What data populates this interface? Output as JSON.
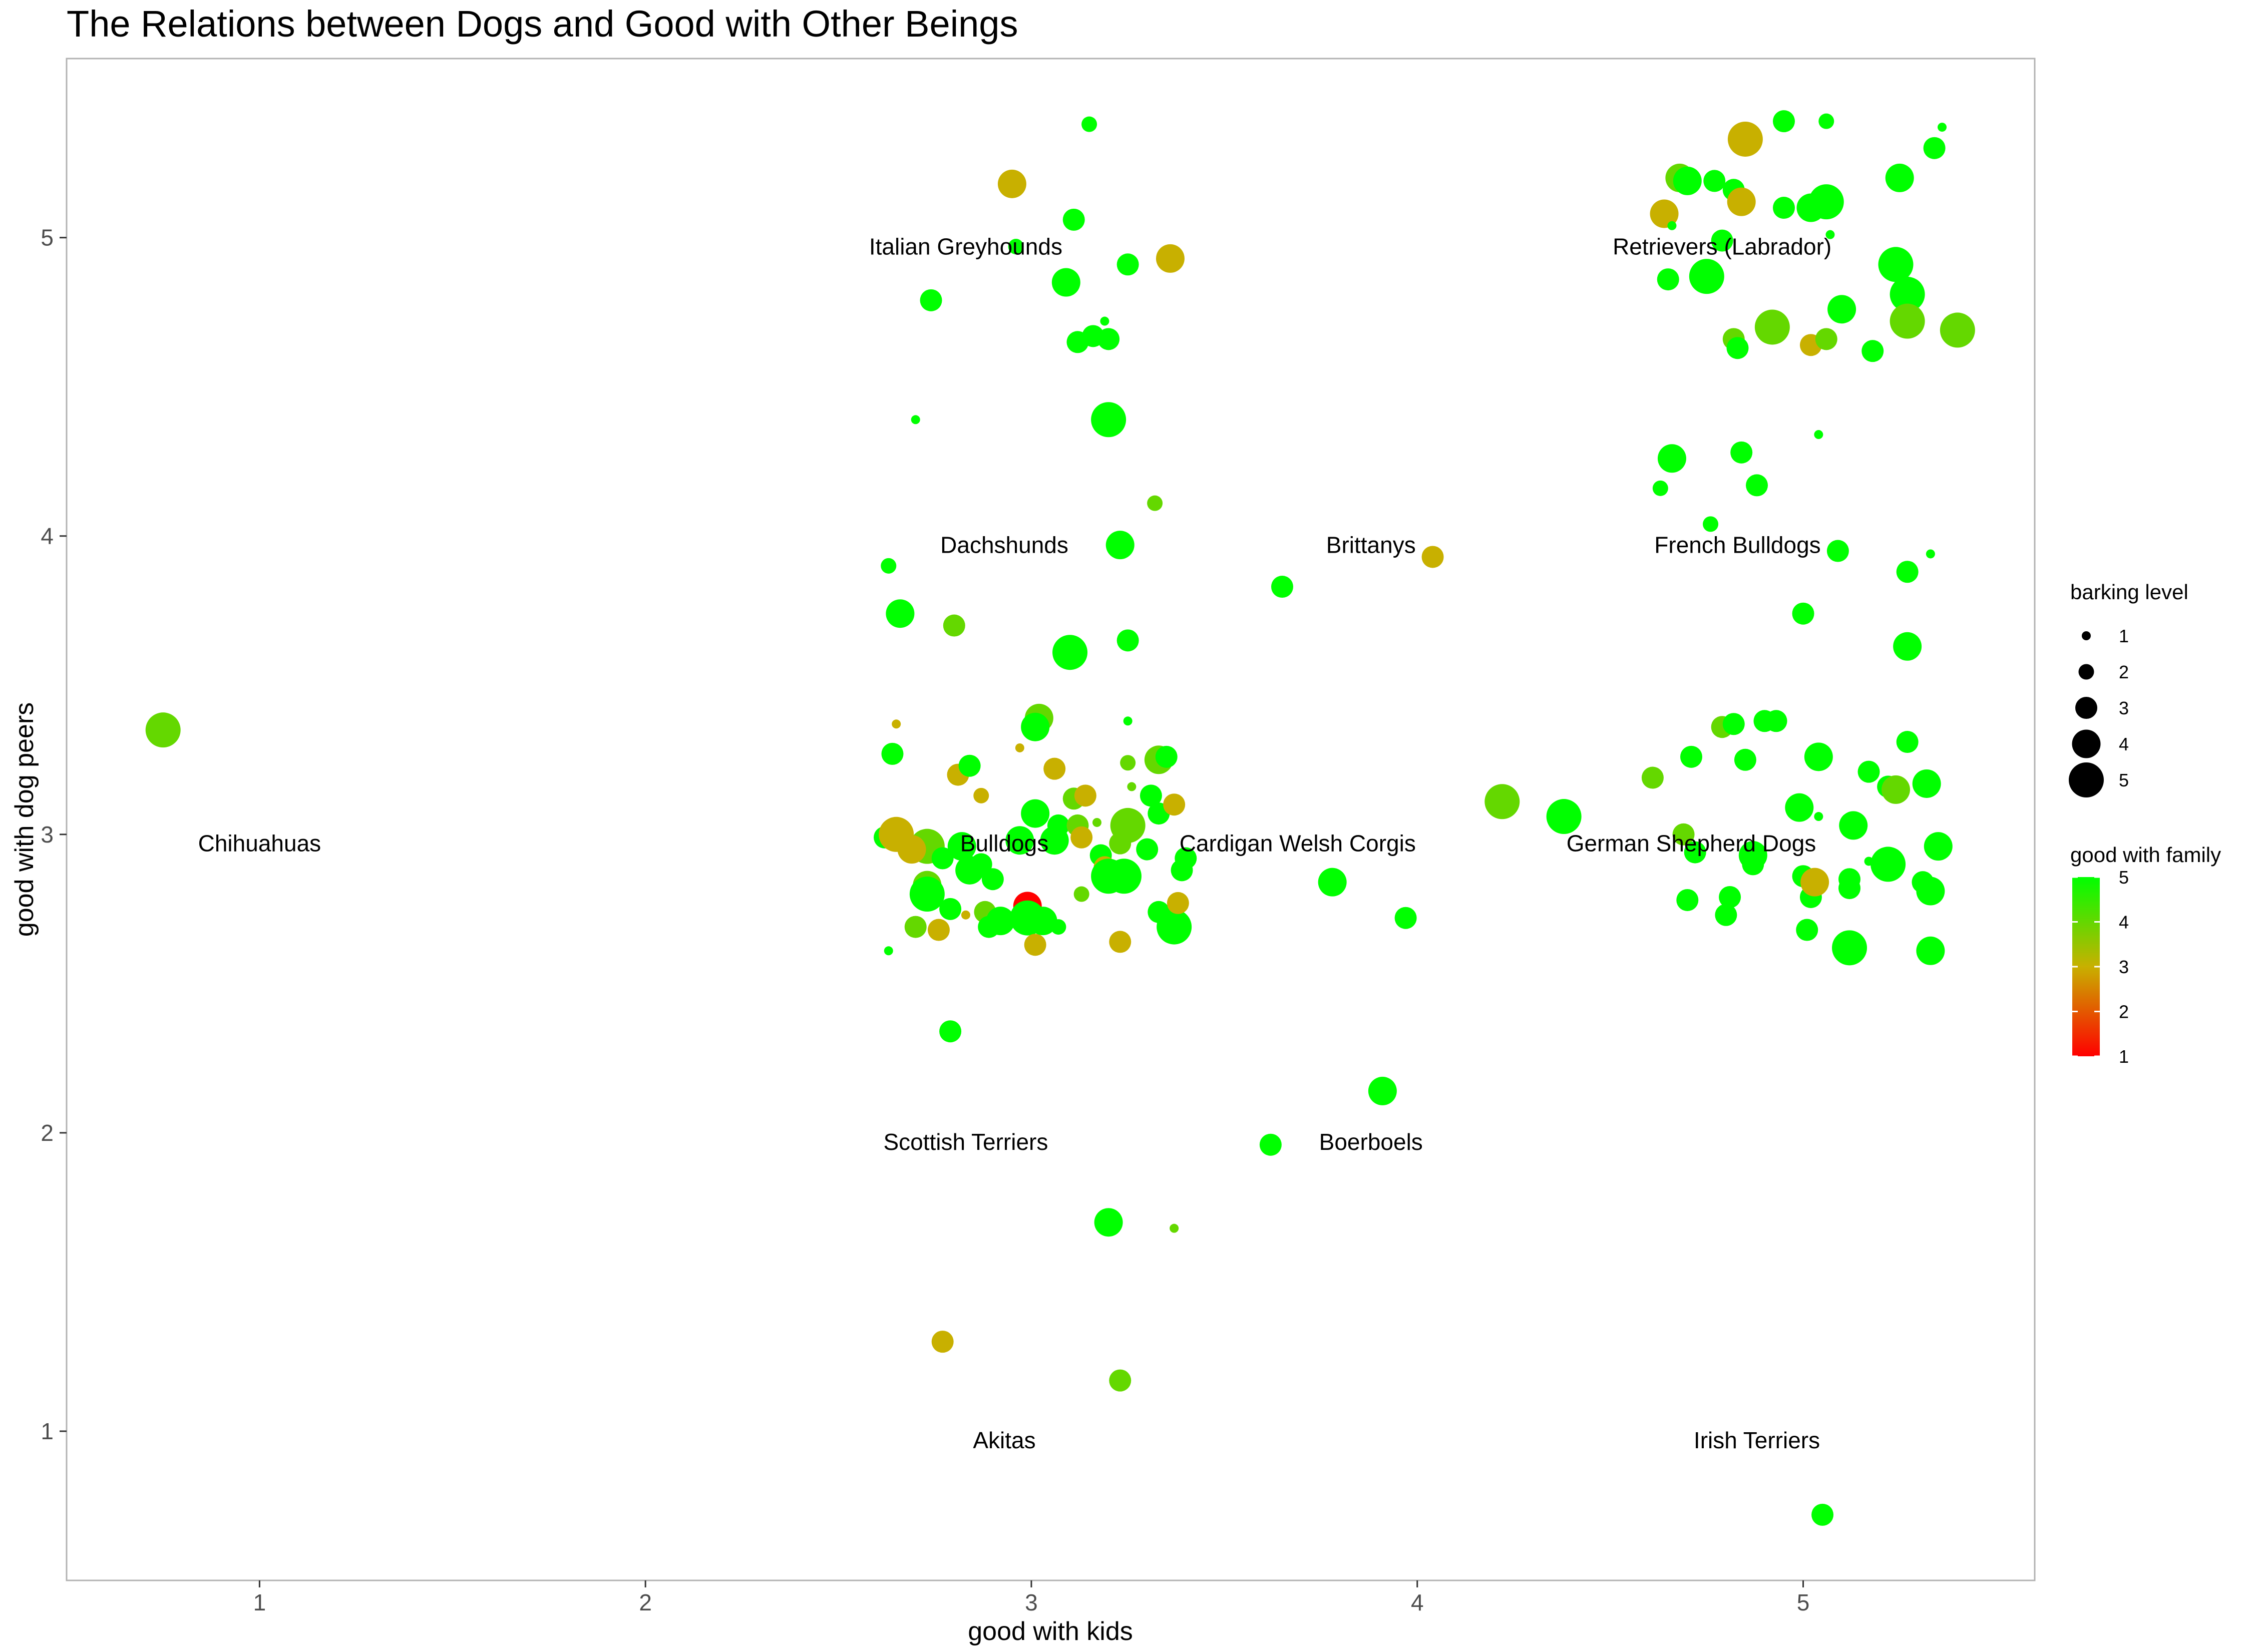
{
  "chart_data": {
    "type": "scatter",
    "title": "The Relations between Dogs and Good with Other Beings",
    "xlabel": "good with kids",
    "ylabel": "good with dog peers",
    "xlim": [
      0.5,
      5.6
    ],
    "ylim": [
      0.5,
      5.6
    ],
    "x_ticks": [
      1,
      2,
      3,
      4,
      5
    ],
    "y_ticks": [
      1,
      2,
      3,
      4,
      5
    ],
    "grid": false,
    "legend_position": "right",
    "size_legend": {
      "title": "barking level",
      "levels": [
        1,
        2,
        3,
        4,
        5
      ],
      "labels": [
        "1",
        "2",
        "3",
        "4",
        "5"
      ]
    },
    "color_legend": {
      "title": "good with family",
      "range": [
        1,
        5
      ],
      "low_color": "#ff0000",
      "high_color": "#00ff00",
      "tick_labels": [
        "5",
        "4",
        "3",
        "2",
        "1"
      ],
      "tick_values": [
        5,
        4,
        3,
        2,
        1
      ]
    },
    "annotations": [
      {
        "text": "Chihuahuas",
        "x": 1.0,
        "y": 2.97
      },
      {
        "text": "Akitas",
        "x": 2.93,
        "y": 0.97
      },
      {
        "text": "Scottish Terriers",
        "x": 2.83,
        "y": 1.97
      },
      {
        "text": "Bulldogs",
        "x": 2.93,
        "y": 2.97
      },
      {
        "text": "Dachshunds",
        "x": 2.93,
        "y": 3.97
      },
      {
        "text": "Italian Greyhounds",
        "x": 2.83,
        "y": 4.97
      },
      {
        "text": "Cardigan Welsh Corgis",
        "x": 3.69,
        "y": 2.97
      },
      {
        "text": "Boerboels",
        "x": 3.88,
        "y": 1.97
      },
      {
        "text": "Brittanys",
        "x": 3.88,
        "y": 3.97
      },
      {
        "text": "German Shepherd Dogs",
        "x": 4.71,
        "y": 2.97
      },
      {
        "text": "French Bulldogs",
        "x": 4.83,
        "y": 3.97
      },
      {
        "text": "Retrievers (Labrador)",
        "x": 4.79,
        "y": 4.97
      },
      {
        "text": "Irish Terriers",
        "x": 4.88,
        "y": 0.97
      }
    ],
    "points": [
      {
        "x": 0.75,
        "y": 3.35,
        "bark": 5,
        "family": 4
      },
      {
        "x": 2.77,
        "y": 1.3,
        "bark": 3,
        "family": 3
      },
      {
        "x": 3.23,
        "y": 1.17,
        "bark": 3,
        "family": 4
      },
      {
        "x": 3.2,
        "y": 1.7,
        "bark": 4,
        "family": 5
      },
      {
        "x": 3.37,
        "y": 1.68,
        "bark": 1,
        "family": 4
      },
      {
        "x": 2.79,
        "y": 2.34,
        "bark": 3,
        "family": 5
      },
      {
        "x": 3.62,
        "y": 1.96,
        "bark": 3,
        "family": 5
      },
      {
        "x": 3.91,
        "y": 2.14,
        "bark": 4,
        "family": 5
      },
      {
        "x": 2.62,
        "y": 2.99,
        "bark": 3,
        "family": 5
      },
      {
        "x": 2.65,
        "y": 3.0,
        "bark": 5,
        "family": 3
      },
      {
        "x": 2.73,
        "y": 2.96,
        "bark": 5,
        "family": 4
      },
      {
        "x": 2.69,
        "y": 2.95,
        "bark": 4,
        "family": 3
      },
      {
        "x": 2.63,
        "y": 2.61,
        "bark": 1,
        "family": 5
      },
      {
        "x": 2.64,
        "y": 3.27,
        "bark": 3,
        "family": 5
      },
      {
        "x": 2.65,
        "y": 3.37,
        "bark": 1,
        "family": 3
      },
      {
        "x": 2.7,
        "y": 2.69,
        "bark": 3,
        "family": 4
      },
      {
        "x": 2.73,
        "y": 2.83,
        "bark": 4,
        "family": 4
      },
      {
        "x": 2.73,
        "y": 2.8,
        "bark": 5,
        "family": 5
      },
      {
        "x": 2.76,
        "y": 2.68,
        "bark": 3,
        "family": 3
      },
      {
        "x": 2.79,
        "y": 2.75,
        "bark": 3,
        "family": 5
      },
      {
        "x": 2.81,
        "y": 3.2,
        "bark": 3,
        "family": 3
      },
      {
        "x": 2.84,
        "y": 3.23,
        "bark": 3,
        "family": 5
      },
      {
        "x": 2.82,
        "y": 2.96,
        "bark": 4,
        "family": 5
      },
      {
        "x": 2.84,
        "y": 2.88,
        "bark": 4,
        "family": 5
      },
      {
        "x": 2.87,
        "y": 2.9,
        "bark": 3,
        "family": 5
      },
      {
        "x": 2.87,
        "y": 3.13,
        "bark": 2,
        "family": 3
      },
      {
        "x": 2.88,
        "y": 2.74,
        "bark": 3,
        "family": 4
      },
      {
        "x": 2.89,
        "y": 2.69,
        "bark": 3,
        "family": 5
      },
      {
        "x": 2.92,
        "y": 2.71,
        "bark": 4,
        "family": 5
      },
      {
        "x": 2.9,
        "y": 2.85,
        "bark": 3,
        "family": 5
      },
      {
        "x": 2.77,
        "y": 2.92,
        "bark": 3,
        "family": 5
      },
      {
        "x": 2.83,
        "y": 2.73,
        "bark": 1,
        "family": 3
      },
      {
        "x": 2.97,
        "y": 2.98,
        "bark": 4,
        "family": 5
      },
      {
        "x": 2.99,
        "y": 2.76,
        "bark": 4,
        "family": 1
      },
      {
        "x": 2.99,
        "y": 2.72,
        "bark": 5,
        "family": 5
      },
      {
        "x": 3.01,
        "y": 2.63,
        "bark": 3,
        "family": 3
      },
      {
        "x": 3.01,
        "y": 3.07,
        "bark": 4,
        "family": 5
      },
      {
        "x": 3.02,
        "y": 3.39,
        "bark": 4,
        "family": 4
      },
      {
        "x": 3.01,
        "y": 3.36,
        "bark": 4,
        "family": 5
      },
      {
        "x": 3.03,
        "y": 2.71,
        "bark": 4,
        "family": 5
      },
      {
        "x": 3.06,
        "y": 3.22,
        "bark": 3,
        "family": 3
      },
      {
        "x": 3.06,
        "y": 2.98,
        "bark": 4,
        "family": 5
      },
      {
        "x": 3.07,
        "y": 2.69,
        "bark": 2,
        "family": 5
      },
      {
        "x": 3.07,
        "y": 3.03,
        "bark": 3,
        "family": 5
      },
      {
        "x": 3.11,
        "y": 3.12,
        "bark": 3,
        "family": 4
      },
      {
        "x": 3.12,
        "y": 3.03,
        "bark": 3,
        "family": 4
      },
      {
        "x": 3.13,
        "y": 2.99,
        "bark": 3,
        "family": 3
      },
      {
        "x": 3.14,
        "y": 3.13,
        "bark": 3,
        "family": 3
      },
      {
        "x": 3.13,
        "y": 2.8,
        "bark": 2,
        "family": 4
      },
      {
        "x": 2.97,
        "y": 3.29,
        "bark": 1,
        "family": 3
      },
      {
        "x": 3.17,
        "y": 3.04,
        "bark": 1,
        "family": 4
      },
      {
        "x": 3.18,
        "y": 2.93,
        "bark": 3,
        "family": 5
      },
      {
        "x": 3.19,
        "y": 2.89,
        "bark": 3,
        "family": 3
      },
      {
        "x": 3.2,
        "y": 2.86,
        "bark": 5,
        "family": 5
      },
      {
        "x": 3.23,
        "y": 2.97,
        "bark": 3,
        "family": 4
      },
      {
        "x": 3.23,
        "y": 2.64,
        "bark": 3,
        "family": 3
      },
      {
        "x": 3.24,
        "y": 2.86,
        "bark": 5,
        "family": 5
      },
      {
        "x": 3.25,
        "y": 3.03,
        "bark": 5,
        "family": 4
      },
      {
        "x": 3.25,
        "y": 3.24,
        "bark": 2,
        "family": 4
      },
      {
        "x": 3.25,
        "y": 3.38,
        "bark": 1,
        "family": 5
      },
      {
        "x": 3.26,
        "y": 3.16,
        "bark": 1,
        "family": 4
      },
      {
        "x": 3.3,
        "y": 2.95,
        "bark": 3,
        "family": 5
      },
      {
        "x": 3.31,
        "y": 3.13,
        "bark": 3,
        "family": 5
      },
      {
        "x": 3.33,
        "y": 3.07,
        "bark": 3,
        "family": 5
      },
      {
        "x": 3.33,
        "y": 3.25,
        "bark": 4,
        "family": 4
      },
      {
        "x": 3.35,
        "y": 3.26,
        "bark": 3,
        "family": 5
      },
      {
        "x": 3.33,
        "y": 2.74,
        "bark": 3,
        "family": 5
      },
      {
        "x": 3.37,
        "y": 2.69,
        "bark": 5,
        "family": 5
      },
      {
        "x": 3.37,
        "y": 3.1,
        "bark": 3,
        "family": 3
      },
      {
        "x": 3.38,
        "y": 2.77,
        "bark": 3,
        "family": 3
      },
      {
        "x": 3.39,
        "y": 2.88,
        "bark": 3,
        "family": 5
      },
      {
        "x": 3.4,
        "y": 2.92,
        "bark": 3,
        "family": 5
      },
      {
        "x": 2.63,
        "y": 3.9,
        "bark": 2,
        "family": 5
      },
      {
        "x": 2.66,
        "y": 3.74,
        "bark": 4,
        "family": 5
      },
      {
        "x": 2.8,
        "y": 3.7,
        "bark": 3,
        "family": 4
      },
      {
        "x": 3.1,
        "y": 3.61,
        "bark": 5,
        "family": 5
      },
      {
        "x": 3.23,
        "y": 3.97,
        "bark": 4,
        "family": 5
      },
      {
        "x": 3.25,
        "y": 3.65,
        "bark": 3,
        "family": 5
      },
      {
        "x": 3.32,
        "y": 4.11,
        "bark": 2,
        "family": 4
      },
      {
        "x": 3.65,
        "y": 3.83,
        "bark": 3,
        "family": 5
      },
      {
        "x": 4.04,
        "y": 3.93,
        "bark": 3,
        "family": 3
      },
      {
        "x": 2.7,
        "y": 4.39,
        "bark": 1,
        "family": 5
      },
      {
        "x": 2.74,
        "y": 4.79,
        "bark": 3,
        "family": 5
      },
      {
        "x": 2.95,
        "y": 5.18,
        "bark": 4,
        "family": 3
      },
      {
        "x": 2.96,
        "y": 4.97,
        "bark": 2,
        "family": 5
      },
      {
        "x": 3.09,
        "y": 4.85,
        "bark": 4,
        "family": 5
      },
      {
        "x": 3.11,
        "y": 5.06,
        "bark": 3,
        "family": 5
      },
      {
        "x": 3.12,
        "y": 4.65,
        "bark": 3,
        "family": 5
      },
      {
        "x": 3.15,
        "y": 5.38,
        "bark": 2,
        "family": 5
      },
      {
        "x": 3.16,
        "y": 4.67,
        "bark": 3,
        "family": 5
      },
      {
        "x": 3.19,
        "y": 4.72,
        "bark": 1,
        "family": 5
      },
      {
        "x": 3.2,
        "y": 4.66,
        "bark": 3,
        "family": 5
      },
      {
        "x": 3.2,
        "y": 4.39,
        "bark": 5,
        "family": 5
      },
      {
        "x": 3.25,
        "y": 4.91,
        "bark": 3,
        "family": 5
      },
      {
        "x": 3.36,
        "y": 4.93,
        "bark": 4,
        "family": 3
      },
      {
        "x": 4.22,
        "y": 3.11,
        "bark": 5,
        "family": 4
      },
      {
        "x": 4.38,
        "y": 3.06,
        "bark": 5,
        "family": 5
      },
      {
        "x": 3.78,
        "y": 2.84,
        "bark": 4,
        "family": 5
      },
      {
        "x": 3.97,
        "y": 2.72,
        "bark": 3,
        "family": 5
      },
      {
        "x": 4.61,
        "y": 3.19,
        "bark": 3,
        "family": 4
      },
      {
        "x": 4.69,
        "y": 3.0,
        "bark": 3,
        "family": 4
      },
      {
        "x": 4.71,
        "y": 3.26,
        "bark": 3,
        "family": 5
      },
      {
        "x": 4.72,
        "y": 2.94,
        "bark": 3,
        "family": 5
      },
      {
        "x": 4.7,
        "y": 2.78,
        "bark": 3,
        "family": 5
      },
      {
        "x": 4.79,
        "y": 3.36,
        "bark": 3,
        "family": 4
      },
      {
        "x": 4.82,
        "y": 3.37,
        "bark": 3,
        "family": 5
      },
      {
        "x": 4.8,
        "y": 2.73,
        "bark": 3,
        "family": 5
      },
      {
        "x": 4.81,
        "y": 2.79,
        "bark": 3,
        "family": 5
      },
      {
        "x": 4.85,
        "y": 3.25,
        "bark": 3,
        "family": 5
      },
      {
        "x": 4.87,
        "y": 2.9,
        "bark": 3,
        "family": 5
      },
      {
        "x": 4.87,
        "y": 2.93,
        "bark": 4,
        "family": 5
      },
      {
        "x": 4.9,
        "y": 3.38,
        "bark": 3,
        "family": 5
      },
      {
        "x": 4.93,
        "y": 3.38,
        "bark": 3,
        "family": 5
      },
      {
        "x": 4.99,
        "y": 3.09,
        "bark": 4,
        "family": 5
      },
      {
        "x": 5.0,
        "y": 2.86,
        "bark": 3,
        "family": 5
      },
      {
        "x": 5.01,
        "y": 2.68,
        "bark": 3,
        "family": 5
      },
      {
        "x": 5.02,
        "y": 2.79,
        "bark": 3,
        "family": 5
      },
      {
        "x": 5.03,
        "y": 2.84,
        "bark": 4,
        "family": 3
      },
      {
        "x": 5.04,
        "y": 3.26,
        "bark": 4,
        "family": 5
      },
      {
        "x": 5.04,
        "y": 3.06,
        "bark": 1,
        "family": 5
      },
      {
        "x": 5.12,
        "y": 2.62,
        "bark": 5,
        "family": 5
      },
      {
        "x": 5.12,
        "y": 2.85,
        "bark": 3,
        "family": 5
      },
      {
        "x": 5.13,
        "y": 3.03,
        "bark": 4,
        "family": 5
      },
      {
        "x": 5.12,
        "y": 2.82,
        "bark": 3,
        "family": 5
      },
      {
        "x": 5.17,
        "y": 3.21,
        "bark": 3,
        "family": 5
      },
      {
        "x": 5.17,
        "y": 2.91,
        "bark": 1,
        "family": 5
      },
      {
        "x": 5.22,
        "y": 3.16,
        "bark": 3,
        "family": 5
      },
      {
        "x": 5.22,
        "y": 2.9,
        "bark": 5,
        "family": 5
      },
      {
        "x": 5.24,
        "y": 3.15,
        "bark": 4,
        "family": 4
      },
      {
        "x": 5.27,
        "y": 3.31,
        "bark": 3,
        "family": 5
      },
      {
        "x": 5.31,
        "y": 2.84,
        "bark": 3,
        "family": 5
      },
      {
        "x": 5.32,
        "y": 3.17,
        "bark": 4,
        "family": 5
      },
      {
        "x": 5.33,
        "y": 2.81,
        "bark": 4,
        "family": 5
      },
      {
        "x": 5.33,
        "y": 2.61,
        "bark": 4,
        "family": 5
      },
      {
        "x": 5.35,
        "y": 2.96,
        "bark": 4,
        "family": 5
      },
      {
        "x": 4.63,
        "y": 4.16,
        "bark": 2,
        "family": 5
      },
      {
        "x": 4.66,
        "y": 4.26,
        "bark": 4,
        "family": 5
      },
      {
        "x": 4.76,
        "y": 4.04,
        "bark": 2,
        "family": 5
      },
      {
        "x": 4.84,
        "y": 4.28,
        "bark": 3,
        "family": 5
      },
      {
        "x": 4.88,
        "y": 4.17,
        "bark": 3,
        "family": 5
      },
      {
        "x": 5.0,
        "y": 3.74,
        "bark": 3,
        "family": 5
      },
      {
        "x": 5.09,
        "y": 3.95,
        "bark": 3,
        "family": 5
      },
      {
        "x": 5.27,
        "y": 3.88,
        "bark": 3,
        "family": 5
      },
      {
        "x": 5.27,
        "y": 3.63,
        "bark": 4,
        "family": 5
      },
      {
        "x": 5.33,
        "y": 3.94,
        "bark": 1,
        "family": 5
      },
      {
        "x": 4.64,
        "y": 5.08,
        "bark": 4,
        "family": 3
      },
      {
        "x": 4.66,
        "y": 5.04,
        "bark": 1,
        "family": 5
      },
      {
        "x": 4.65,
        "y": 4.86,
        "bark": 3,
        "family": 5
      },
      {
        "x": 4.68,
        "y": 5.2,
        "bark": 4,
        "family": 4
      },
      {
        "x": 4.7,
        "y": 5.19,
        "bark": 4,
        "family": 5
      },
      {
        "x": 4.75,
        "y": 4.87,
        "bark": 5,
        "family": 5
      },
      {
        "x": 4.77,
        "y": 5.19,
        "bark": 3,
        "family": 5
      },
      {
        "x": 4.79,
        "y": 4.99,
        "bark": 3,
        "family": 5
      },
      {
        "x": 4.82,
        "y": 5.16,
        "bark": 3,
        "family": 5
      },
      {
        "x": 4.82,
        "y": 4.66,
        "bark": 3,
        "family": 4
      },
      {
        "x": 4.83,
        "y": 4.63,
        "bark": 3,
        "family": 5
      },
      {
        "x": 4.85,
        "y": 5.33,
        "bark": 5,
        "family": 3
      },
      {
        "x": 4.84,
        "y": 5.12,
        "bark": 4,
        "family": 3
      },
      {
        "x": 4.92,
        "y": 4.7,
        "bark": 5,
        "family": 4
      },
      {
        "x": 4.95,
        "y": 5.1,
        "bark": 3,
        "family": 5
      },
      {
        "x": 4.95,
        "y": 5.39,
        "bark": 3,
        "family": 5
      },
      {
        "x": 5.02,
        "y": 4.64,
        "bark": 3,
        "family": 3
      },
      {
        "x": 5.02,
        "y": 5.1,
        "bark": 4,
        "family": 5
      },
      {
        "x": 5.04,
        "y": 4.34,
        "bark": 1,
        "family": 5
      },
      {
        "x": 5.06,
        "y": 5.12,
        "bark": 5,
        "family": 5
      },
      {
        "x": 5.06,
        "y": 4.66,
        "bark": 3,
        "family": 4
      },
      {
        "x": 5.06,
        "y": 5.39,
        "bark": 2,
        "family": 5
      },
      {
        "x": 5.07,
        "y": 5.01,
        "bark": 1,
        "family": 5
      },
      {
        "x": 5.1,
        "y": 4.76,
        "bark": 4,
        "family": 5
      },
      {
        "x": 5.18,
        "y": 4.62,
        "bark": 3,
        "family": 5
      },
      {
        "x": 5.24,
        "y": 4.91,
        "bark": 5,
        "family": 5
      },
      {
        "x": 5.25,
        "y": 5.2,
        "bark": 4,
        "family": 5
      },
      {
        "x": 5.27,
        "y": 4.81,
        "bark": 5,
        "family": 5
      },
      {
        "x": 5.27,
        "y": 4.72,
        "bark": 5,
        "family": 4
      },
      {
        "x": 5.34,
        "y": 5.3,
        "bark": 3,
        "family": 5
      },
      {
        "x": 5.36,
        "y": 5.37,
        "bark": 1,
        "family": 5
      },
      {
        "x": 5.4,
        "y": 4.69,
        "bark": 5,
        "family": 4
      },
      {
        "x": 5.05,
        "y": 0.72,
        "bark": 3,
        "family": 5
      }
    ]
  }
}
